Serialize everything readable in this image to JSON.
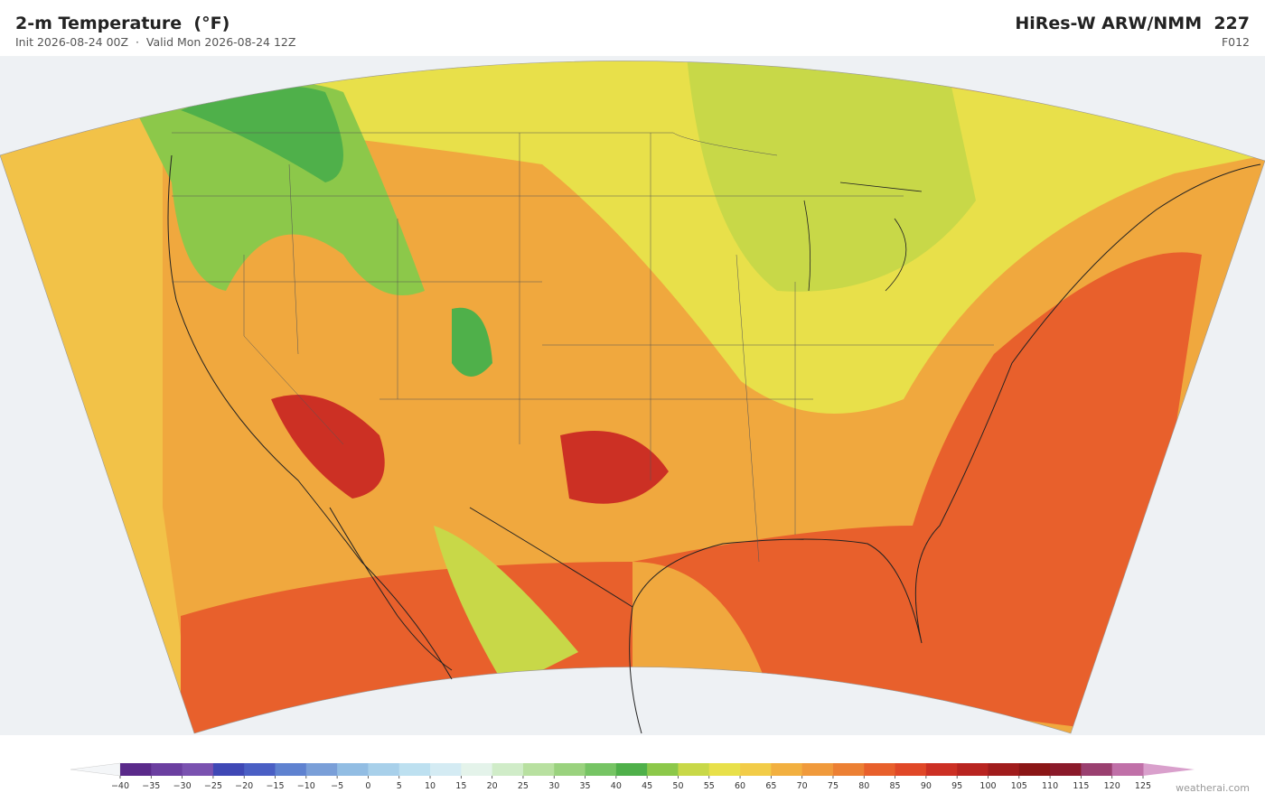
{
  "header": {
    "title": "2-m Temperature  (°F)",
    "subtitle": "Init 2026-08-24 00Z  ·  Valid Mon 2026-08-24 12Z",
    "model": "HiRes-W ARW/NMM  227",
    "forecast_hour": "F012"
  },
  "colorbar": {
    "ticks": [
      {
        "value": -40,
        "label": "−40"
      },
      {
        "value": -35,
        "label": "−35"
      },
      {
        "value": -30,
        "label": "−30"
      },
      {
        "value": -25,
        "label": "−25"
      },
      {
        "value": -20,
        "label": "−20"
      },
      {
        "value": -15,
        "label": "−15"
      },
      {
        "value": -10,
        "label": "−10"
      },
      {
        "value": -5,
        "label": "−5"
      },
      0,
      5,
      10,
      15,
      20,
      25,
      30,
      35,
      40,
      45,
      50,
      55,
      60,
      65,
      70,
      75,
      80,
      85,
      90,
      95,
      100,
      105,
      110,
      115,
      120,
      125
    ],
    "colors": [
      "#5a2a8a",
      "#6b3fa0",
      "#7a52b0",
      "#3f48b5",
      "#4a5fc4",
      "#5f82d0",
      "#7a9fd8",
      "#92bde3",
      "#a8d0ea",
      "#bde0f0",
      "#d4ebf3",
      "#e4f3ea",
      "#d0ecc8",
      "#b8e0a0",
      "#9ad27e",
      "#76c464",
      "#4fb04a",
      "#8cc84a",
      "#c8d848",
      "#e8e04a",
      "#f2cc48",
      "#f2b040",
      "#f09a3c",
      "#ec8034",
      "#e8602c",
      "#e04828",
      "#cc3024",
      "#b82420",
      "#a01c1c",
      "#8a1616",
      "#8a1a2a",
      "#9a4070",
      "#c070a8"
    ],
    "under_color": "#f4f6f8",
    "over_color": "#d9a0cc"
  },
  "footer": {
    "credit": "weatherai.com"
  }
}
